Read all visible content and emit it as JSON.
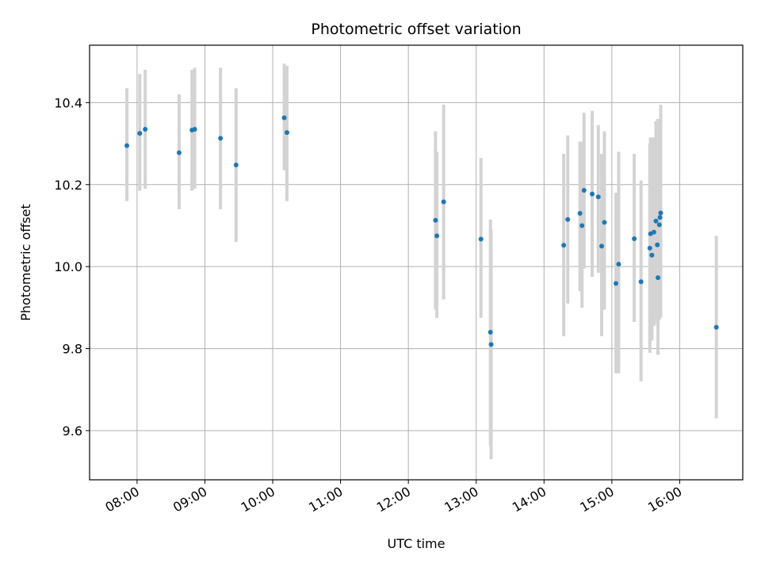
{
  "chart_data": {
    "type": "scatter",
    "title": "Photometric offset variation",
    "xlabel": "UTC time",
    "ylabel": "Photometric offset",
    "x_unit": "hours UTC",
    "xlim": [
      7.3,
      16.93
    ],
    "ylim": [
      9.48,
      10.54
    ],
    "grid": true,
    "xticks": [
      8,
      9,
      10,
      11,
      12,
      13,
      14,
      15,
      16
    ],
    "xtick_labels": [
      "08:00",
      "09:00",
      "10:00",
      "11:00",
      "12:00",
      "13:00",
      "14:00",
      "15:00",
      "16:00"
    ],
    "yticks": [
      9.6,
      9.8,
      10.0,
      10.2,
      10.4
    ],
    "ytick_labels": [
      "9.6",
      "9.8",
      "10.0",
      "10.2",
      "10.4"
    ],
    "colors": {
      "point": "#1f77b4",
      "errorbar": "#d3d3d3",
      "grid": "#b0b0b0"
    },
    "series": [
      {
        "x": [
          7.85,
          8.04,
          8.12,
          8.62,
          8.81,
          8.85,
          9.23,
          9.46,
          10.17,
          10.21,
          12.4,
          12.42,
          12.52,
          13.07,
          13.21,
          13.22,
          14.29,
          14.35,
          14.53,
          14.56,
          14.59,
          14.71,
          14.8,
          14.85,
          14.89,
          15.06,
          15.1,
          15.33,
          15.43,
          15.56,
          15.57,
          15.59,
          15.62,
          15.65,
          15.67,
          15.68,
          15.7,
          15.71,
          15.72,
          16.54
        ],
        "y": [
          10.295,
          10.325,
          10.335,
          10.278,
          10.333,
          10.335,
          10.313,
          10.248,
          10.363,
          10.327,
          10.113,
          10.075,
          10.158,
          10.067,
          9.84,
          9.81,
          10.052,
          10.115,
          10.13,
          10.1,
          10.186,
          10.177,
          10.17,
          10.05,
          10.108,
          9.959,
          10.006,
          10.068,
          9.963,
          10.045,
          10.08,
          10.028,
          10.084,
          10.111,
          10.053,
          9.973,
          10.102,
          10.12,
          10.131,
          9.852
        ],
        "err_low": [
          10.16,
          10.185,
          10.19,
          10.14,
          10.185,
          10.19,
          10.14,
          10.06,
          10.235,
          10.16,
          9.895,
          9.875,
          9.92,
          9.875,
          9.565,
          9.53,
          9.83,
          9.91,
          9.94,
          9.9,
          9.995,
          9.975,
          9.985,
          9.83,
          9.895,
          9.74,
          9.74,
          9.865,
          9.72,
          9.79,
          9.82,
          9.82,
          9.855,
          9.87,
          9.86,
          9.785,
          9.87,
          9.9,
          9.875,
          9.63
        ],
        "err_high": [
          10.435,
          10.47,
          10.48,
          10.42,
          10.48,
          10.485,
          10.485,
          10.435,
          10.495,
          10.49,
          10.33,
          10.28,
          10.395,
          10.265,
          10.115,
          10.09,
          10.275,
          10.32,
          10.305,
          10.305,
          10.375,
          10.38,
          10.345,
          10.275,
          10.33,
          10.18,
          10.28,
          10.275,
          10.21,
          10.3,
          10.315,
          10.315,
          10.315,
          10.355,
          10.25,
          10.36,
          10.315,
          10.335,
          10.395,
          10.075
        ]
      }
    ]
  }
}
